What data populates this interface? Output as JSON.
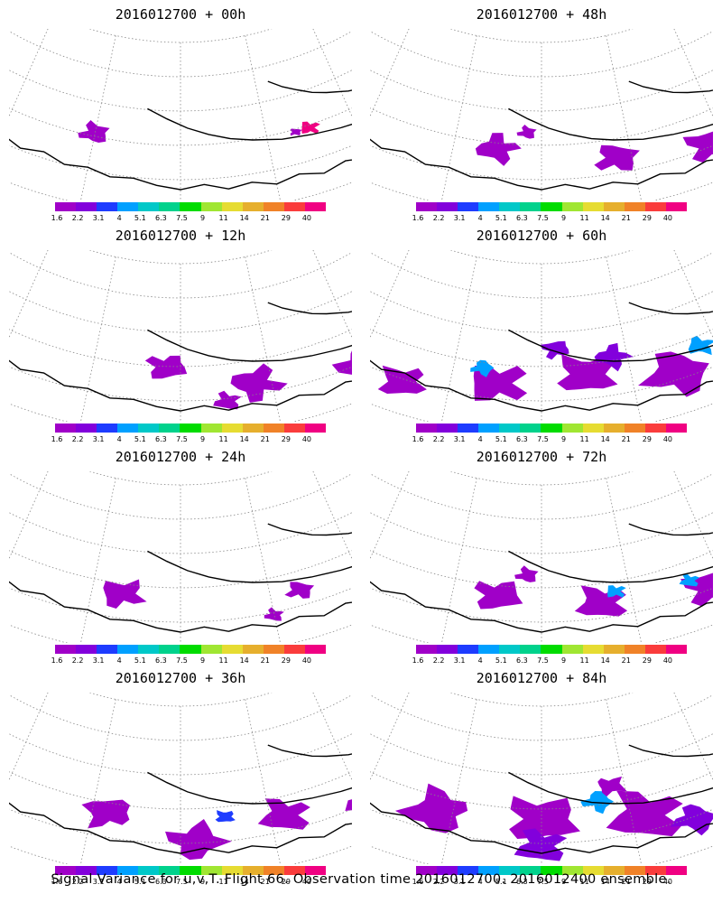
{
  "panels": [
    {
      "title": "2016012700 + 00h",
      "level": 0
    },
    {
      "title": "2016012700 + 48h",
      "level": 4
    },
    {
      "title": "2016012700 + 12h",
      "level": 1
    },
    {
      "title": "2016012700 + 60h",
      "level": 5
    },
    {
      "title": "2016012700 + 24h",
      "level": 2
    },
    {
      "title": "2016012700 + 72h",
      "level": 6
    },
    {
      "title": "2016012700 + 36h",
      "level": 3
    },
    {
      "title": "2016012700 + 84h",
      "level": 7
    }
  ],
  "colorbar": {
    "labels": [
      "1.6",
      "2.2",
      "3.1",
      "4",
      "5.1",
      "6.3",
      "7.5",
      "9",
      "11",
      "14",
      "21",
      "29",
      "40"
    ],
    "colors": [
      "#a000c8",
      "#8200dc",
      "#1e3cff",
      "#00a0ff",
      "#00c8c8",
      "#00d28c",
      "#00dc00",
      "#a0e632",
      "#e6dc32",
      "#e6af2d",
      "#f08228",
      "#fa3c3c",
      "#f00082"
    ]
  },
  "footer": "Signal Variance for u,v,T. Flight 66. Observation time 2016012700. 2016012400 ensemble."
}
